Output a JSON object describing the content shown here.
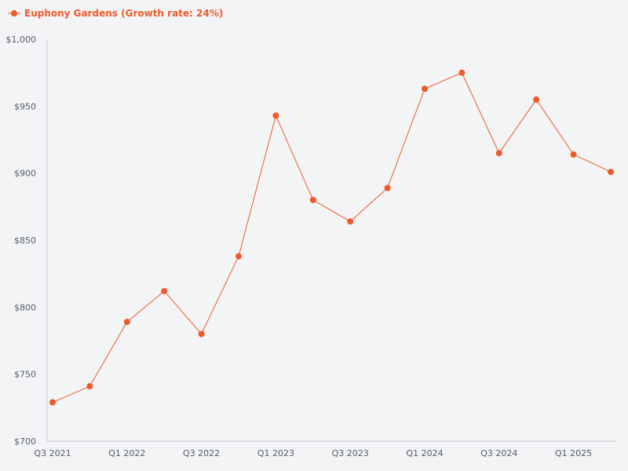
{
  "colors": {
    "background": "#f3f4f6",
    "series": "#f05a28",
    "axis": "#c9ccd6",
    "tick_text": "#555b63"
  },
  "legend": {
    "position": "top-left",
    "marker_icon": "line-with-dot-icon"
  },
  "chart_data": {
    "type": "line",
    "title": "",
    "xlabel": "",
    "ylabel": "",
    "grid": false,
    "ylim": [
      700,
      1000
    ],
    "x_tick_labels": [
      "Q3 2021",
      "Q1 2022",
      "Q3 2022",
      "Q1 2023",
      "Q3 2023",
      "Q1 2024",
      "Q3 2024",
      "Q1 2025"
    ],
    "y_tick_labels": [
      "$700",
      "$750",
      "$800",
      "$850",
      "$900",
      "$950",
      "$1,000"
    ],
    "y_ticks": [
      700,
      750,
      800,
      850,
      900,
      950,
      1000
    ],
    "categories": [
      "Q3 2021",
      "Q4 2021",
      "Q1 2022",
      "Q2 2022",
      "Q3 2022",
      "Q4 2022",
      "Q1 2023",
      "Q2 2023",
      "Q3 2023",
      "Q4 2023",
      "Q1 2024",
      "Q2 2024",
      "Q3 2024",
      "Q4 2024",
      "Q1 2025",
      "Q2 2025"
    ],
    "series": [
      {
        "name": "Euphony Gardens (Growth rate: 24%)",
        "color": "#f05a28",
        "values": [
          729,
          741,
          789,
          812,
          780,
          838,
          943,
          880,
          864,
          889,
          963,
          975,
          915,
          955,
          914,
          901
        ]
      }
    ]
  }
}
